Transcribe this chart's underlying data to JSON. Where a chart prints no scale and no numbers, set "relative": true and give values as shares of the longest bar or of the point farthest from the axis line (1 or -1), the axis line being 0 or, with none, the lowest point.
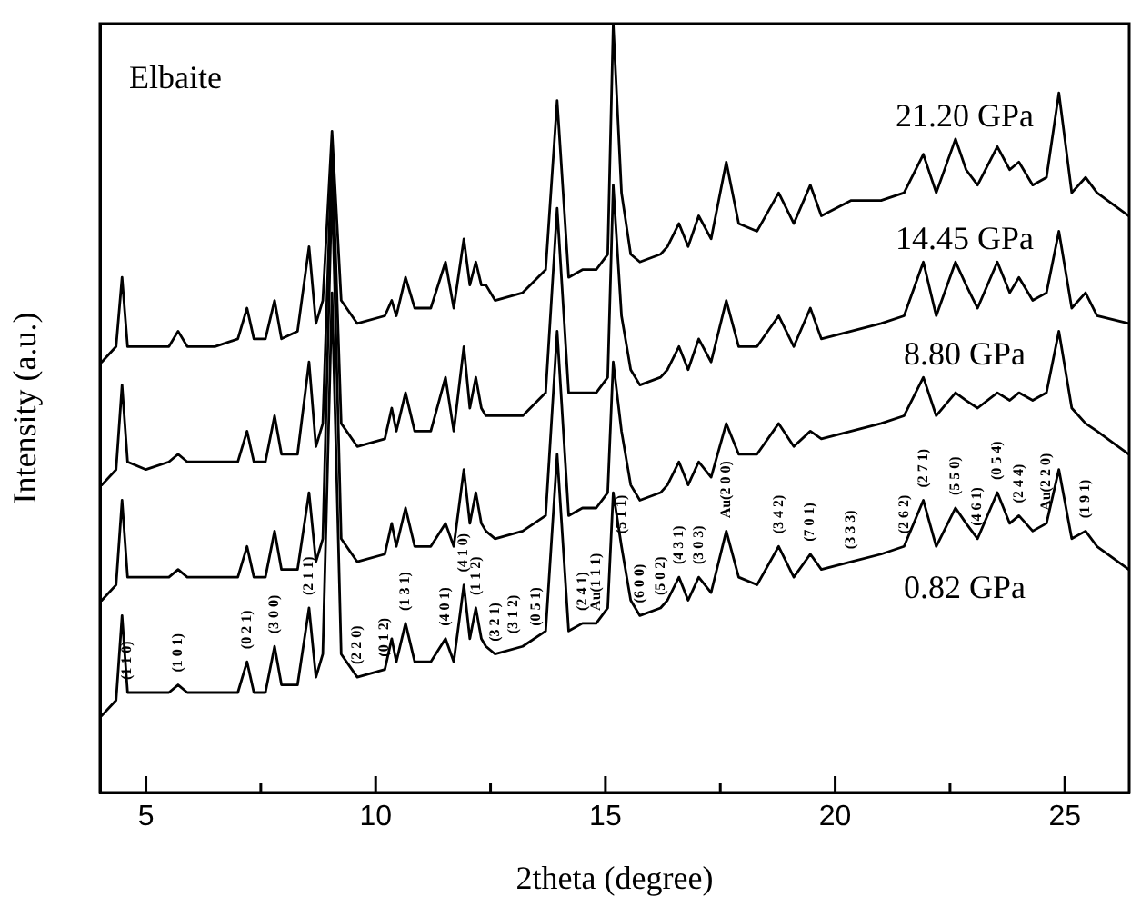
{
  "chart_data": {
    "type": "line",
    "relative": true,
    "xlabel": "2theta (degree)",
    "ylabel": "Intensity (a.u.)",
    "xlim": [
      4,
      26.4
    ],
    "xticks": [
      5,
      {
        "value": 7.5,
        "label": null
      },
      10,
      {
        "value": 12.5,
        "label": null
      },
      15,
      {
        "value": 17.5,
        "label": null
      },
      20,
      {
        "value": 22.5,
        "label": null
      },
      25
    ],
    "tick_labels": "x",
    "grid": false,
    "legend": false,
    "marker": "none",
    "line_style": "solid",
    "x": [
      4.04,
      4.35,
      4.48,
      4.6,
      5.0,
      5.5,
      5.7,
      5.9,
      6.5,
      7.0,
      7.2,
      7.35,
      7.6,
      7.8,
      7.95,
      8.3,
      8.55,
      8.7,
      8.85,
      9.05,
      9.25,
      9.6,
      10.2,
      10.35,
      10.45,
      10.65,
      10.85,
      11.2,
      11.52,
      11.7,
      11.92,
      12.05,
      12.18,
      12.3,
      12.4,
      12.6,
      13.2,
      13.7,
      13.95,
      14.2,
      14.5,
      14.8,
      15.05,
      15.17,
      15.35,
      15.55,
      15.75,
      16.2,
      16.35,
      16.6,
      16.8,
      17.03,
      17.3,
      17.63,
      17.9,
      18.3,
      18.77,
      19.1,
      19.46,
      19.7,
      20.35,
      21.0,
      21.5,
      21.92,
      22.2,
      22.62,
      22.85,
      23.1,
      23.53,
      23.8,
      24.0,
      24.3,
      24.6,
      24.87,
      25.15,
      25.45,
      25.7,
      26.39
    ],
    "series": [
      {
        "name": "21.20 GPa",
        "color": "#000000",
        "values": [
          0.56,
          0.58,
          0.67,
          0.58,
          0.58,
          0.58,
          0.6,
          0.58,
          0.58,
          0.59,
          0.63,
          0.59,
          0.59,
          0.64,
          0.59,
          0.6,
          0.71,
          0.61,
          0.64,
          0.86,
          0.64,
          0.61,
          0.62,
          0.64,
          0.62,
          0.67,
          0.63,
          0.63,
          0.69,
          0.63,
          0.72,
          0.66,
          0.69,
          0.66,
          0.66,
          0.64,
          0.65,
          0.68,
          0.9,
          0.67,
          0.68,
          0.68,
          0.7,
          1.0,
          0.78,
          0.7,
          0.69,
          0.7,
          0.71,
          0.74,
          0.71,
          0.75,
          0.72,
          0.82,
          0.74,
          0.73,
          0.78,
          0.74,
          0.79,
          0.75,
          0.77,
          0.77,
          0.78,
          0.83,
          0.78,
          0.85,
          0.81,
          0.79,
          0.84,
          0.81,
          0.82,
          0.79,
          0.8,
          0.91,
          0.78,
          0.8,
          0.78,
          0.75
        ]
      },
      {
        "name": "14.45 GPa",
        "color": "#000000",
        "values": [
          0.4,
          0.42,
          0.53,
          0.43,
          0.42,
          0.43,
          0.44,
          0.43,
          0.43,
          0.43,
          0.47,
          0.43,
          0.43,
          0.49,
          0.44,
          0.44,
          0.56,
          0.45,
          0.48,
          0.84,
          0.48,
          0.45,
          0.46,
          0.5,
          0.47,
          0.52,
          0.47,
          0.47,
          0.54,
          0.47,
          0.58,
          0.5,
          0.54,
          0.5,
          0.49,
          0.49,
          0.49,
          0.52,
          0.76,
          0.52,
          0.52,
          0.52,
          0.54,
          0.79,
          0.62,
          0.55,
          0.53,
          0.54,
          0.55,
          0.58,
          0.55,
          0.59,
          0.56,
          0.64,
          0.58,
          0.58,
          0.62,
          0.58,
          0.63,
          0.59,
          0.6,
          0.61,
          0.62,
          0.69,
          0.62,
          0.69,
          0.66,
          0.63,
          0.69,
          0.65,
          0.67,
          0.64,
          0.65,
          0.73,
          0.63,
          0.65,
          0.62,
          0.61
        ]
      },
      {
        "name": "8.80 GPa",
        "color": "#000000",
        "values": [
          0.25,
          0.27,
          0.38,
          0.28,
          0.28,
          0.28,
          0.29,
          0.28,
          0.28,
          0.28,
          0.32,
          0.28,
          0.28,
          0.34,
          0.29,
          0.29,
          0.39,
          0.3,
          0.33,
          0.79,
          0.33,
          0.3,
          0.31,
          0.35,
          0.32,
          0.37,
          0.32,
          0.32,
          0.35,
          0.32,
          0.42,
          0.35,
          0.39,
          0.35,
          0.34,
          0.33,
          0.34,
          0.36,
          0.6,
          0.36,
          0.37,
          0.37,
          0.39,
          0.56,
          0.47,
          0.4,
          0.38,
          0.39,
          0.4,
          0.43,
          0.4,
          0.43,
          0.41,
          0.48,
          0.44,
          0.44,
          0.48,
          0.45,
          0.47,
          0.46,
          0.47,
          0.48,
          0.49,
          0.54,
          0.49,
          0.52,
          0.51,
          0.5,
          0.52,
          0.51,
          0.52,
          0.51,
          0.52,
          0.6,
          0.5,
          0.48,
          0.47,
          0.44
        ]
      },
      {
        "name": "0.82 GPa",
        "color": "#000000",
        "values": [
          0.1,
          0.12,
          0.23,
          0.13,
          0.13,
          0.13,
          0.14,
          0.13,
          0.13,
          0.13,
          0.17,
          0.13,
          0.13,
          0.19,
          0.14,
          0.14,
          0.24,
          0.15,
          0.18,
          0.65,
          0.18,
          0.15,
          0.16,
          0.2,
          0.17,
          0.22,
          0.17,
          0.17,
          0.2,
          0.17,
          0.27,
          0.2,
          0.24,
          0.2,
          0.19,
          0.18,
          0.19,
          0.21,
          0.44,
          0.21,
          0.22,
          0.22,
          0.24,
          0.39,
          0.32,
          0.25,
          0.23,
          0.24,
          0.25,
          0.28,
          0.25,
          0.28,
          0.26,
          0.34,
          0.28,
          0.27,
          0.32,
          0.28,
          0.31,
          0.29,
          0.3,
          0.31,
          0.32,
          0.38,
          0.32,
          0.37,
          0.35,
          0.33,
          0.39,
          0.35,
          0.36,
          0.34,
          0.35,
          0.42,
          0.33,
          0.34,
          0.32,
          0.29
        ]
      }
    ],
    "annotations": [
      "Elbaite",
      {
        "text": "(1 1 0)",
        "x": 4.6,
        "y": 0.13
      },
      {
        "text": "(1 0 1)",
        "x": 5.7,
        "y": 0.14
      },
      {
        "text": "(0 2 1)",
        "x": 7.2,
        "y": 0.17
      },
      {
        "text": "(3 0 0)",
        "x": 7.8,
        "y": 0.19
      },
      {
        "text": "(2 1 1)",
        "x": 8.55,
        "y": 0.24
      },
      {
        "text": "(2 2 0)",
        "x": 9.6,
        "y": 0.15
      },
      {
        "text": "(0 1 2)",
        "x": 10.2,
        "y": 0.16
      },
      {
        "text": "(1 3 1)",
        "x": 10.65,
        "y": 0.22
      },
      {
        "text": "(4 0 1)",
        "x": 11.52,
        "y": 0.2
      },
      {
        "text": "(4 1 0)",
        "x": 11.92,
        "y": 0.27
      },
      {
        "text": "(1 1 2)",
        "x": 12.18,
        "y": 0.24
      },
      {
        "text": "(3 2 1)",
        "x": 12.6,
        "y": 0.18
      },
      {
        "text": "(3 1 2)",
        "x": 13.0,
        "y": 0.19
      },
      {
        "text": "(0 5 1)",
        "x": 13.5,
        "y": 0.2
      },
      {
        "text": "(2 4 1)",
        "x": 14.5,
        "y": 0.22
      },
      {
        "text": "Au(1 1 1)",
        "x": 14.8,
        "y": 0.22
      },
      {
        "text": "(5 1 1)",
        "x": 15.35,
        "y": 0.32
      },
      {
        "text": "(6 0 0)",
        "x": 15.75,
        "y": 0.23
      },
      {
        "text": "(5 0 2)",
        "x": 16.2,
        "y": 0.24
      },
      {
        "text": "(4 3 1)",
        "x": 16.6,
        "y": 0.28
      },
      {
        "text": "(3 0 3)",
        "x": 17.03,
        "y": 0.28
      },
      {
        "text": "Au(2 0 0)",
        "x": 17.63,
        "y": 0.34
      },
      {
        "text": "(3 4 2)",
        "x": 18.77,
        "y": 0.32
      },
      {
        "text": "(7 0 1)",
        "x": 19.46,
        "y": 0.31
      },
      {
        "text": "(3 3 3)",
        "x": 20.35,
        "y": 0.3
      },
      {
        "text": "(2 6 2)",
        "x": 21.5,
        "y": 0.32
      },
      {
        "text": "(2 7 1)",
        "x": 21.92,
        "y": 0.38
      },
      {
        "text": "(5 5 0)",
        "x": 22.62,
        "y": 0.37
      },
      {
        "text": "(4 6 1)",
        "x": 23.1,
        "y": 0.33
      },
      {
        "text": "(0 5 4)",
        "x": 23.53,
        "y": 0.39
      },
      {
        "text": "(2 4 4)",
        "x": 24.0,
        "y": 0.36
      },
      {
        "text": "Au(2 2 0)",
        "x": 24.6,
        "y": 0.35
      },
      {
        "text": "(1 9 1)",
        "x": 25.45,
        "y": 0.34
      }
    ]
  }
}
